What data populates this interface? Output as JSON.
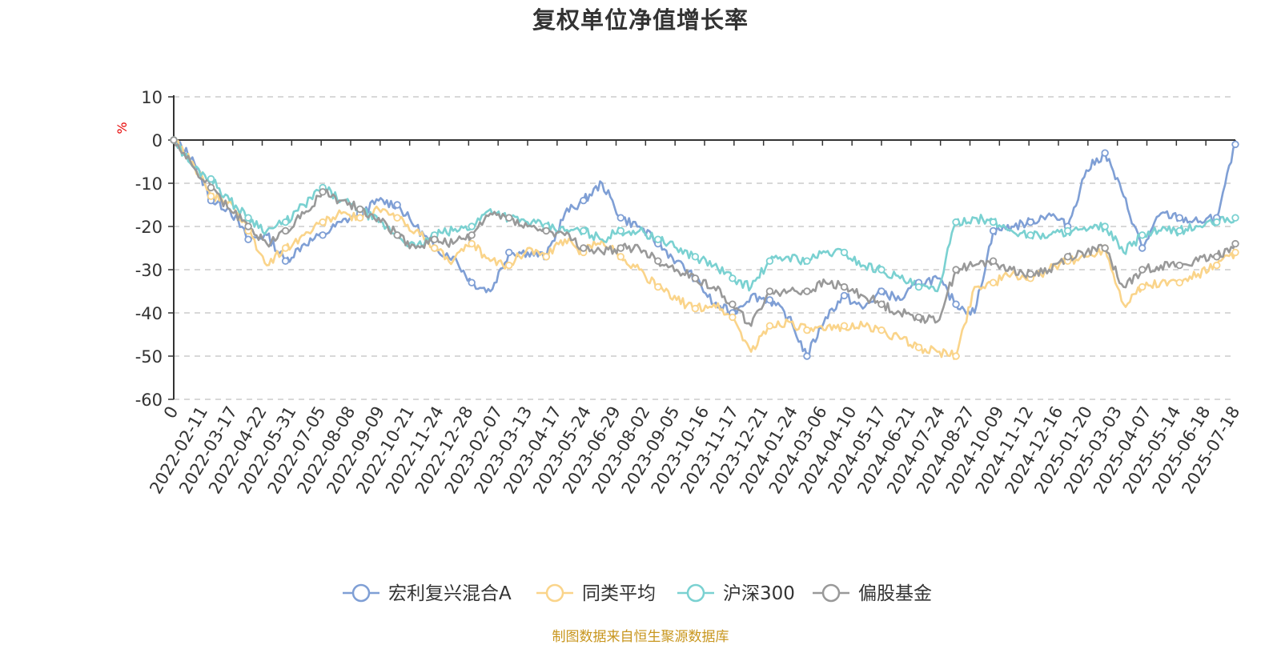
{
  "chart_data": {
    "type": "line",
    "title": "复权单位净值增长率",
    "ylabel": "%",
    "xlabel": "",
    "ylim": [
      -60,
      10
    ],
    "yticks": [
      10,
      0,
      -10,
      -20,
      -30,
      -40,
      -50,
      -60
    ],
    "grid": true,
    "legend_position": "bottom",
    "x_tick_labels": [
      "0",
      "2022-02-11",
      "2022-03-17",
      "2022-04-22",
      "2022-05-31",
      "2022-07-05",
      "2022-08-08",
      "2022-09-09",
      "2022-10-21",
      "2022-11-24",
      "2022-12-28",
      "2023-02-07",
      "2023-03-13",
      "2023-04-17",
      "2023-05-24",
      "2023-06-29",
      "2023-08-02",
      "2023-09-05",
      "2023-10-16",
      "2023-11-17",
      "2023-12-21",
      "2024-01-24",
      "2024-03-06",
      "2024-04-10",
      "2024-05-17",
      "2024-06-21",
      "2024-07-24",
      "2024-08-27",
      "2024-10-09",
      "2024-11-12",
      "2024-12-16",
      "2025-01-20",
      "2025-03-03",
      "2025-04-07",
      "2025-05-14",
      "2025-06-18",
      "2025-07-18"
    ],
    "series": [
      {
        "name": "宏利复兴混合A",
        "color": "#7f9fd5",
        "values": [
          0,
          -4,
          -14,
          -16,
          -23,
          -22,
          -28,
          -24,
          -22,
          -19,
          -17,
          -14,
          -15,
          -20,
          -25,
          -27,
          -33,
          -35,
          -26,
          -26,
          -27,
          -17,
          -14,
          -10,
          -18,
          -20,
          -24,
          -28,
          -32,
          -38,
          -40,
          -36,
          -37,
          -41,
          -50,
          -41,
          -36,
          -39,
          -35,
          -37,
          -33,
          -32,
          -38,
          -40,
          -21,
          -20,
          -19,
          -17,
          -20,
          -7,
          -3,
          -13,
          -25,
          -17,
          -18,
          -19,
          -18,
          -1
        ]
      },
      {
        "name": "同类平均",
        "color": "#fad48a",
        "values": [
          0,
          -5,
          -13,
          -14,
          -21,
          -29,
          -25,
          -22,
          -19,
          -17,
          -18,
          -16,
          -18,
          -21,
          -25,
          -28,
          -24,
          -28,
          -29,
          -25,
          -27,
          -23,
          -26,
          -23,
          -27,
          -30,
          -34,
          -37,
          -39,
          -38,
          -41,
          -49,
          -43,
          -42,
          -44,
          -44,
          -43,
          -43,
          -44,
          -46,
          -48,
          -49,
          -50,
          -34,
          -33,
          -31,
          -32,
          -30,
          -28,
          -27,
          -25,
          -38,
          -34,
          -33,
          -33,
          -31,
          -29,
          -26
        ]
      },
      {
        "name": "沪深300",
        "color": "#7ad1d1",
        "values": [
          0,
          -6,
          -9,
          -14,
          -18,
          -21,
          -19,
          -15,
          -11,
          -14,
          -16,
          -19,
          -22,
          -25,
          -22,
          -21,
          -20,
          -16,
          -18,
          -19,
          -20,
          -21,
          -21,
          -23,
          -21,
          -21,
          -23,
          -25,
          -27,
          -29,
          -32,
          -34,
          -28,
          -27,
          -28,
          -26,
          -26,
          -29,
          -30,
          -32,
          -34,
          -35,
          -19,
          -18,
          -19,
          -21,
          -22,
          -22,
          -21,
          -21,
          -20,
          -26,
          -22,
          -21,
          -21,
          -20,
          -19,
          -18
        ]
      },
      {
        "name": "偏股基金",
        "color": "#999999",
        "values": [
          0,
          -6,
          -11,
          -16,
          -20,
          -24,
          -21,
          -17,
          -12,
          -14,
          -16,
          -18,
          -22,
          -25,
          -23,
          -24,
          -22,
          -17,
          -18,
          -20,
          -21,
          -22,
          -25,
          -26,
          -25,
          -25,
          -28,
          -30,
          -32,
          -34,
          -38,
          -43,
          -35,
          -35,
          -35,
          -33,
          -34,
          -36,
          -38,
          -40,
          -41,
          -42,
          -30,
          -29,
          -28,
          -30,
          -31,
          -30,
          -27,
          -26,
          -25,
          -34,
          -30,
          -29,
          -29,
          -28,
          -27,
          -24
        ]
      }
    ]
  },
  "legend": {
    "items": [
      "宏利复兴混合A",
      "同类平均",
      "沪深300",
      "偏股基金"
    ]
  },
  "source_note": "制图数据来自恒生聚源数据库"
}
